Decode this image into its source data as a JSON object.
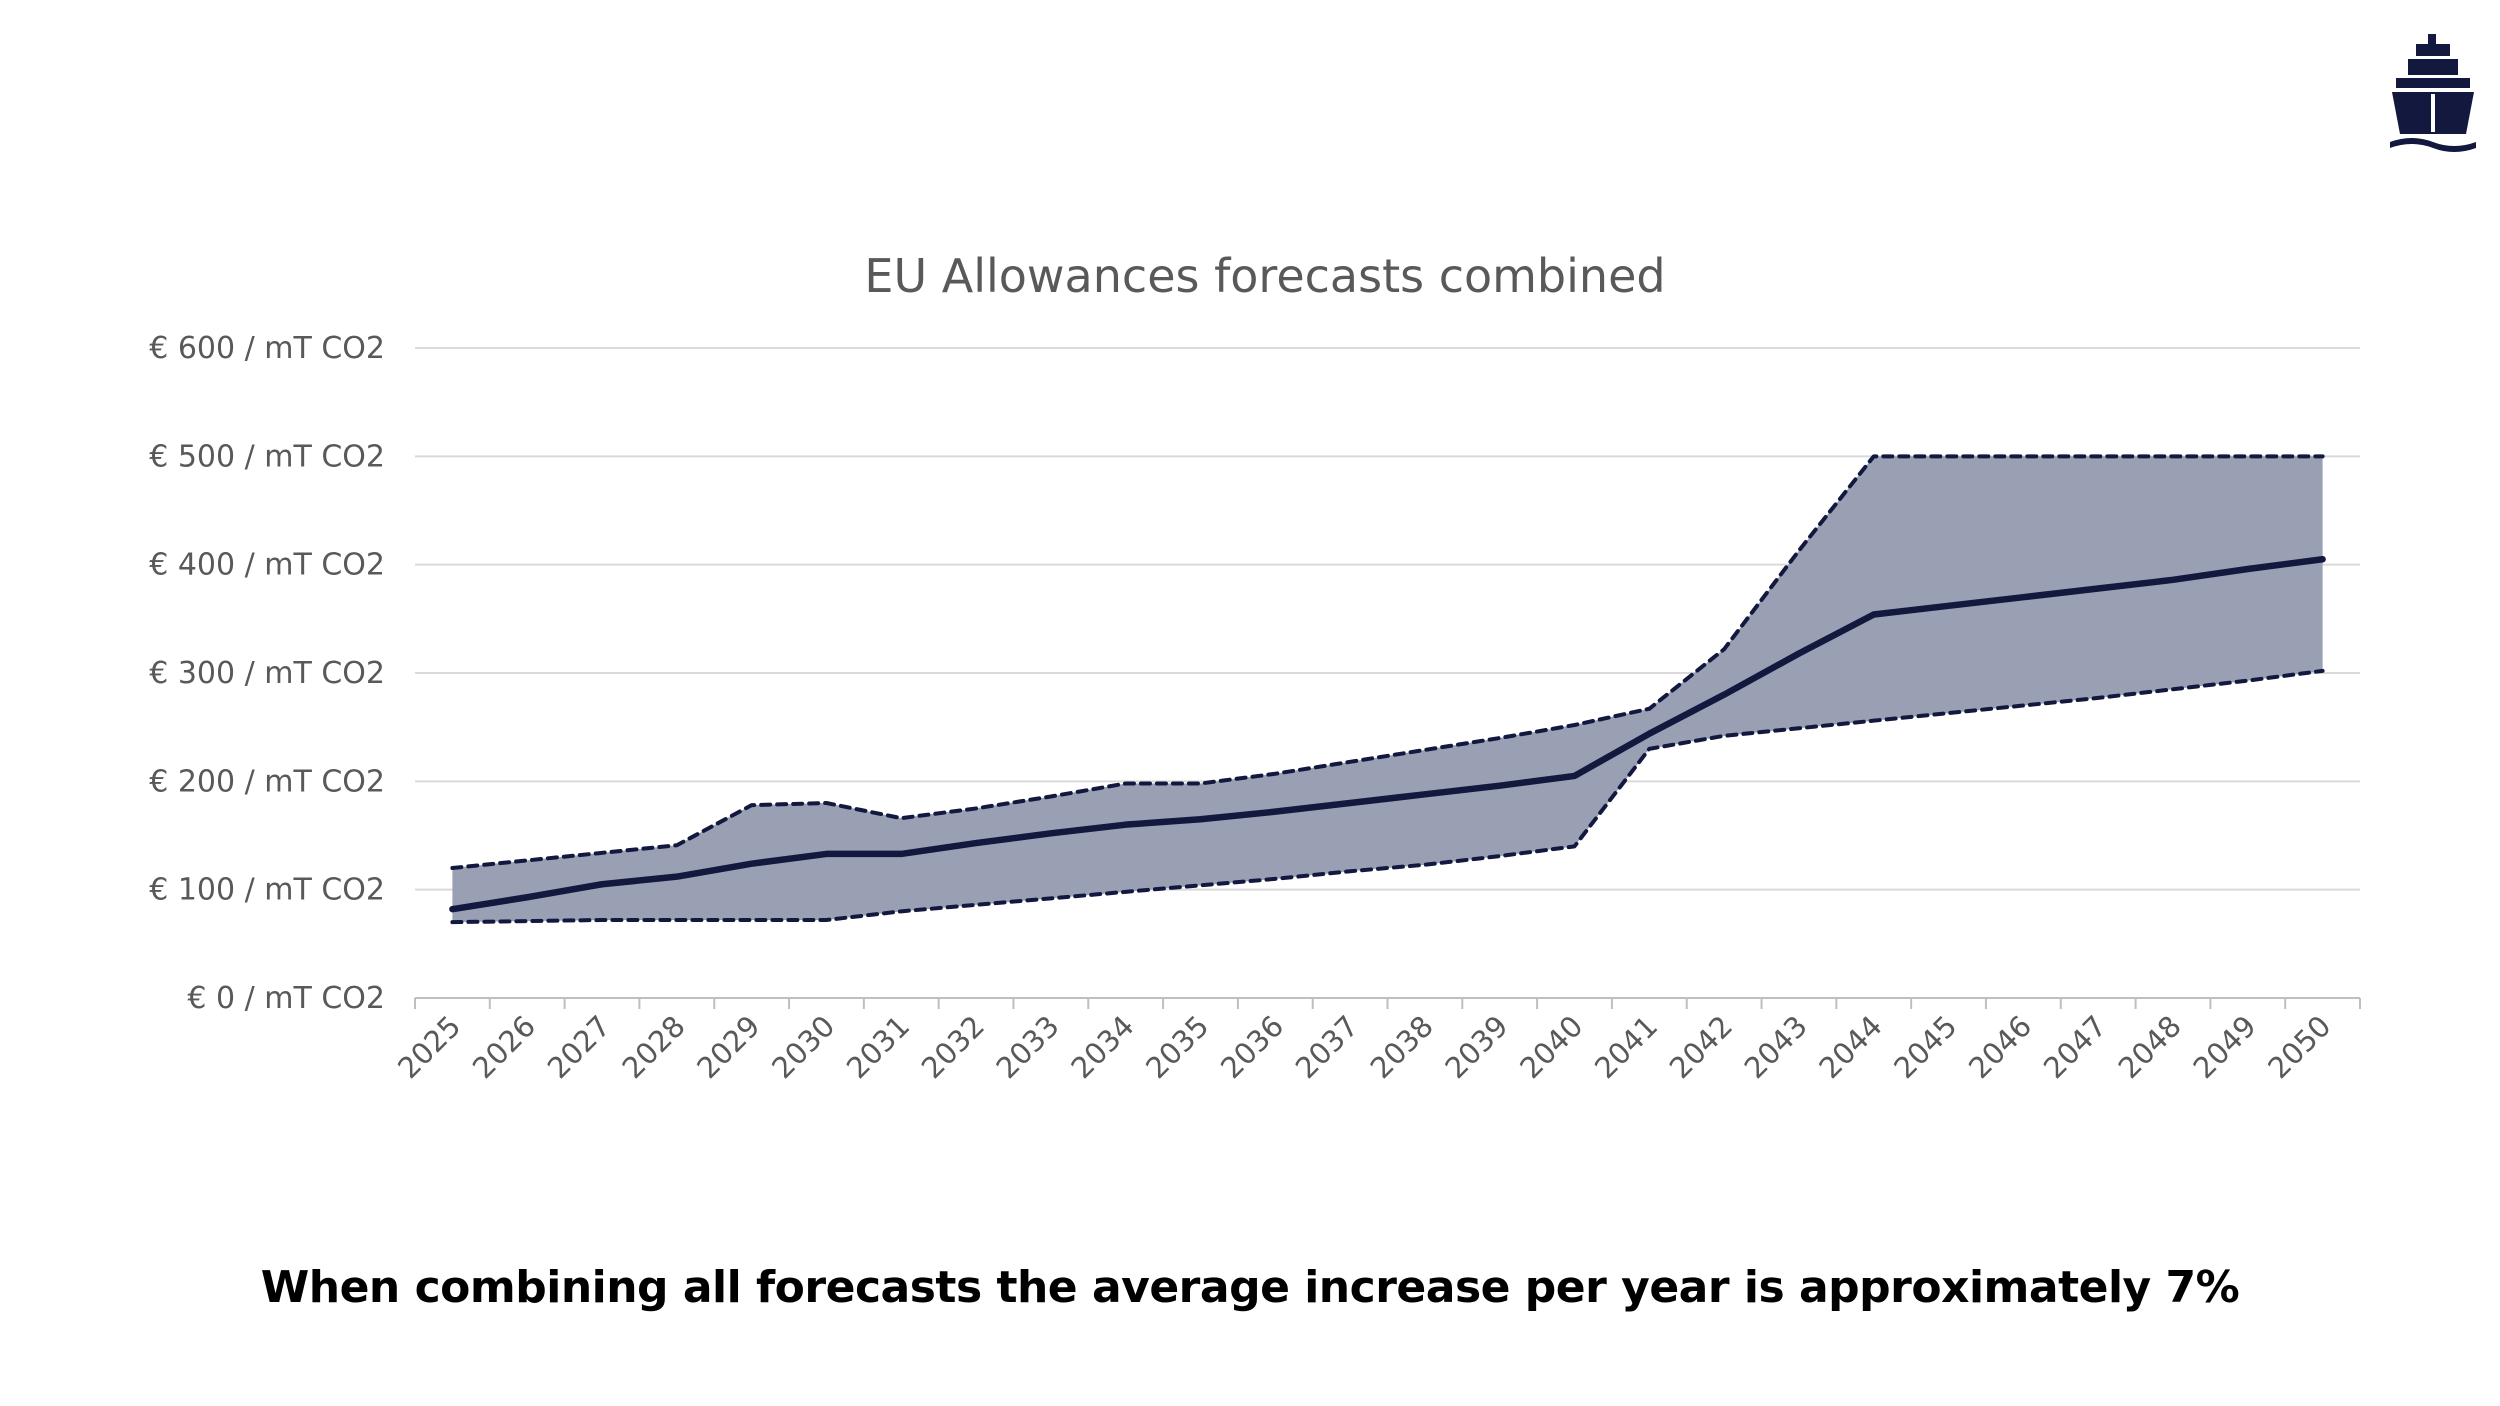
{
  "colors": {
    "band_fill": "#9aa0b4",
    "line": "#13183f",
    "grid": "#d9d9d9",
    "axis": "#bfbfbf",
    "text": "#595959",
    "logo": "#13183f"
  },
  "logo": {
    "icon": "ship-icon"
  },
  "caption": "When combining all forecasts the average increase per year is approximately 7%",
  "chart_data": {
    "type": "area",
    "title": "EU Allowances forecasts combined",
    "xlabel": "",
    "ylabel": "",
    "ylim": [
      0,
      600
    ],
    "grid": true,
    "legend": "none",
    "y_ticks": [
      {
        "value": 0,
        "label": "€ 0 / mT CO2"
      },
      {
        "value": 100,
        "label": "€ 100 / mT CO2"
      },
      {
        "value": 200,
        "label": "€ 200 / mT CO2"
      },
      {
        "value": 300,
        "label": "€ 300 / mT CO2"
      },
      {
        "value": 400,
        "label": "€ 400 / mT CO2"
      },
      {
        "value": 500,
        "label": "€ 500 / mT CO2"
      },
      {
        "value": 600,
        "label": "€ 600 / mT CO2"
      }
    ],
    "categories": [
      "2025",
      "2026",
      "2027",
      "2028",
      "2029",
      "2030",
      "2031",
      "2032",
      "2033",
      "2034",
      "2035",
      "2036",
      "2037",
      "2038",
      "2039",
      "2040",
      "2041",
      "2042",
      "2043",
      "2044",
      "2045",
      "2046",
      "2047",
      "2048",
      "2049",
      "2050"
    ],
    "series": [
      {
        "role": "max",
        "style": "dashed",
        "values": [
          120,
          127,
          134,
          141,
          178,
          180,
          166,
          175,
          186,
          198,
          198,
          207,
          218,
          229,
          240,
          252,
          267,
          322,
          413,
          500,
          500,
          500,
          500,
          500,
          500,
          500
        ]
      },
      {
        "role": "average",
        "style": "solid",
        "values": [
          82,
          93,
          105,
          112,
          124,
          133,
          133,
          143,
          152,
          160,
          165,
          172,
          180,
          188,
          196,
          205,
          244,
          280,
          318,
          354,
          362,
          370,
          378,
          386,
          396,
          405
        ]
      },
      {
        "role": "min",
        "style": "dashed",
        "values": [
          70,
          71,
          72,
          72,
          72,
          72,
          80,
          86,
          92,
          98,
          104,
          110,
          117,
          123,
          131,
          140,
          230,
          242,
          249,
          256,
          263,
          270,
          277,
          285,
          293,
          302
        ]
      }
    ]
  }
}
